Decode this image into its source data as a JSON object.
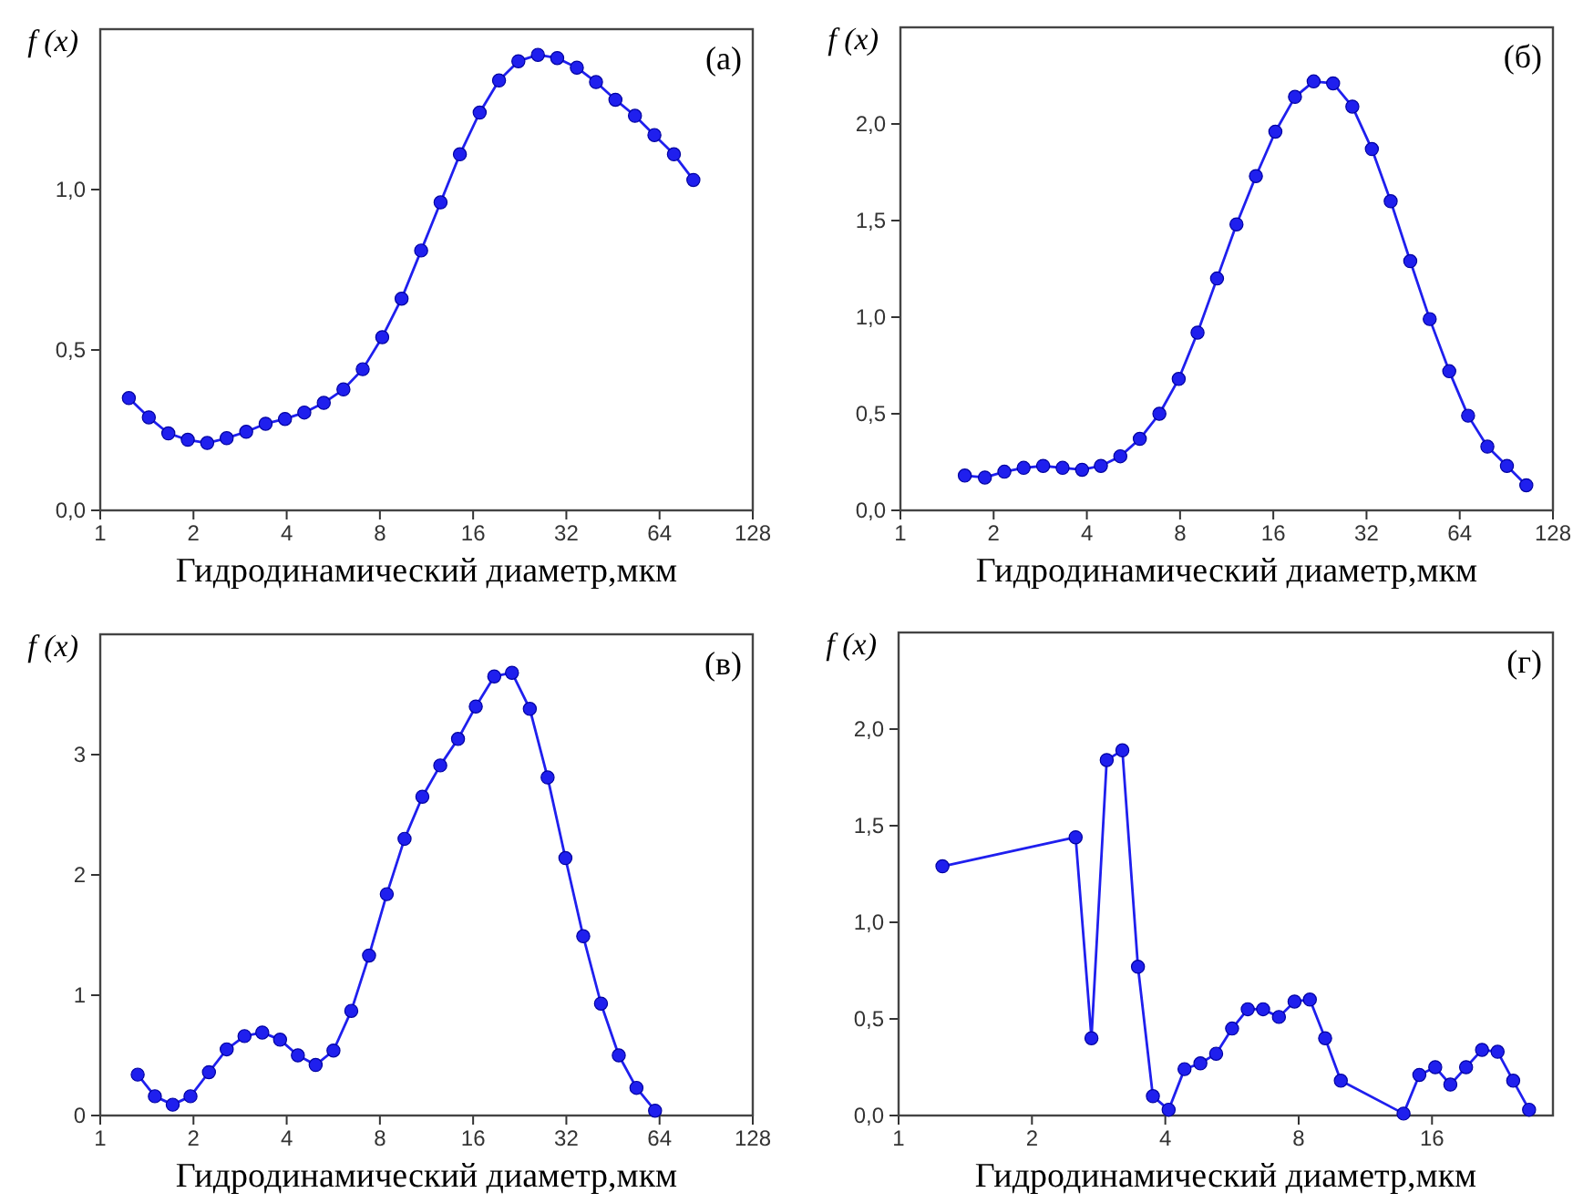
{
  "chart_data": [
    {
      "type": "line",
      "ylabel": "f (x)",
      "xlabel": "Гидродинамический диаметр,мкм",
      "annotations": [
        "(а)"
      ],
      "log": "x",
      "marker": "circle",
      "line_style": "solid",
      "xlim": [
        1,
        128
      ],
      "ylim": [
        0,
        1.5
      ],
      "xticks": [
        1,
        2,
        4,
        8,
        16,
        32,
        64,
        128
      ],
      "yticks": [
        {
          "value": 0,
          "label": "0,0"
        },
        {
          "value": 0.5,
          "label": "0,5"
        },
        {
          "value": 1,
          "label": "1,0"
        }
      ],
      "series": [
        {
          "color": "#1f1fee",
          "x": [
            1.237,
            1.435,
            1.659,
            1.917,
            2.215,
            2.56,
            2.96,
            3.42,
            3.95,
            4.56,
            5.27,
            6.1,
            7.04,
            8.14,
            9.4,
            10.87,
            12.56,
            14.5,
            16.8,
            19.4,
            22.4,
            25.9,
            29.9,
            34.6,
            39.9,
            46.1,
            53.3,
            61.6,
            71.2,
            82.3
          ],
          "values": [
            0.35,
            0.29,
            0.24,
            0.22,
            0.21,
            0.225,
            0.245,
            0.27,
            0.285,
            0.305,
            0.335,
            0.377,
            0.44,
            0.54,
            0.66,
            0.81,
            0.96,
            1.11,
            1.24,
            1.34,
            1.4,
            1.42,
            1.41,
            1.38,
            1.335,
            1.28,
            1.23,
            1.17,
            1.11,
            1.03
          ]
        }
      ]
    },
    {
      "type": "line",
      "ylabel": "f (x)",
      "xlabel": "Гидродинамический диаметр,мкм",
      "annotations": [
        "(б)"
      ],
      "log": "x",
      "marker": "circle",
      "line_style": "solid",
      "xlim": [
        1,
        128
      ],
      "ylim": [
        0,
        2.5
      ],
      "xticks": [
        1,
        2,
        4,
        8,
        16,
        32,
        64,
        128
      ],
      "yticks": [
        {
          "value": 0,
          "label": "0,0"
        },
        {
          "value": 0.5,
          "label": "0,5"
        },
        {
          "value": 1,
          "label": "1,0"
        },
        {
          "value": 1.5,
          "label": "1,5"
        },
        {
          "value": 2,
          "label": "2,0"
        }
      ],
      "series": [
        {
          "color": "#1f1fee",
          "x": [
            1.614,
            1.874,
            2.166,
            2.5,
            2.89,
            3.34,
            3.86,
            4.44,
            5.13,
            5.93,
            6.86,
            7.92,
            9.11,
            10.53,
            12.17,
            14.06,
            16.25,
            18.8,
            21.6,
            24.96,
            28.8,
            33.3,
            38.3,
            44.3,
            51.2,
            59.2,
            68.1,
            78.6,
            90.9,
            105
          ],
          "values": [
            0.18,
            0.17,
            0.2,
            0.22,
            0.23,
            0.22,
            0.21,
            0.23,
            0.28,
            0.37,
            0.5,
            0.68,
            0.92,
            1.2,
            1.48,
            1.73,
            1.96,
            2.14,
            2.22,
            2.21,
            2.09,
            1.87,
            1.6,
            1.29,
            0.99,
            0.72,
            0.49,
            0.33,
            0.23,
            0.13
          ]
        }
      ]
    },
    {
      "type": "line",
      "ylabel": "f (x)",
      "xlabel": "Гидродинамический диаметр,мкм",
      "annotations": [
        "(в)"
      ],
      "log": "x",
      "marker": "circle",
      "line_style": "solid",
      "xlim": [
        1,
        128
      ],
      "ylim": [
        0,
        4
      ],
      "xticks": [
        1,
        2,
        4,
        8,
        16,
        32,
        64,
        128
      ],
      "yticks": [
        0,
        1,
        2,
        3
      ],
      "series": [
        {
          "color": "#1f1fee",
          "x": [
            1.321,
            1.501,
            1.714,
            1.956,
            2.244,
            2.561,
            2.923,
            3.336,
            3.808,
            4.347,
            4.962,
            5.664,
            6.466,
            7.38,
            8.42,
            9.61,
            10.97,
            12.53,
            14.3,
            16.32,
            18.72,
            21.36,
            24.39,
            27.84,
            31.78,
            36.28,
            41.4,
            47.26,
            53.9,
            61.9
          ],
          "values": [
            0.34,
            0.16,
            0.09,
            0.16,
            0.36,
            0.55,
            0.66,
            0.69,
            0.63,
            0.5,
            0.42,
            0.54,
            0.87,
            1.33,
            1.84,
            2.3,
            2.65,
            2.91,
            3.13,
            3.4,
            3.65,
            3.68,
            3.38,
            2.81,
            2.14,
            1.49,
            0.93,
            0.5,
            0.23,
            0.04
          ]
        }
      ]
    },
    {
      "type": "line",
      "ylabel": "f (x)",
      "xlabel": "Гидродинамический диаметр,мкм",
      "annotations": [
        "(г)"
      ],
      "log": "x",
      "marker": "circle",
      "line_style": "solid",
      "xlim": [
        1,
        30
      ],
      "ylim": [
        0,
        2.5
      ],
      "xticks": [
        1,
        2,
        4,
        8,
        16
      ],
      "yticks": [
        {
          "value": 0,
          "label": "0,0"
        },
        {
          "value": 0.5,
          "label": "0,5"
        },
        {
          "value": 1,
          "label": "1,0"
        },
        {
          "value": 1.5,
          "label": "1,5"
        },
        {
          "value": 2,
          "label": "2,0"
        }
      ],
      "series": [
        {
          "color": "#1f1fee",
          "x": [
            1.256,
            2.51,
            2.725,
            2.95,
            3.2,
            3.47,
            3.75,
            4.07,
            4.42,
            4.8,
            5.21,
            5.66,
            6.14,
            6.65,
            7.22,
            7.83,
            8.48,
            9.18,
            9.96,
            13.8,
            14.98,
            16.27,
            17.6,
            19.1,
            20.75,
            22.5,
            24.4,
            26.5
          ],
          "values": [
            1.29,
            1.44,
            0.4,
            1.84,
            1.89,
            0.77,
            0.1,
            0.03,
            0.24,
            0.27,
            0.32,
            0.45,
            0.55,
            0.55,
            0.51,
            0.59,
            0.6,
            0.4,
            0.18,
            0.01,
            0.21,
            0.25,
            0.16,
            0.25,
            0.34,
            0.33,
            0.18,
            0.03
          ]
        }
      ]
    }
  ]
}
